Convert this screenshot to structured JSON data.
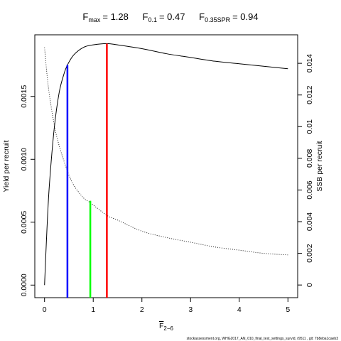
{
  "title": {
    "fmax_base": "F",
    "fmax_sub": "max",
    "fmax_value": "= 1.28",
    "f01_base": "F",
    "f01_sub": "0.1",
    "f01_value": "= 0.47",
    "fspr_base": "F",
    "fspr_sub": "0.35SPR",
    "fspr_value": "= 0.94"
  },
  "footer": "stockassessment.org,  WHG2017_AN_010_final_test_settings_survid, r9511 , git: 7b8eba1caeb3",
  "chart_data": {
    "type": "line",
    "xlabel_base": "F",
    "xlabel_sub": "2−6",
    "ylabel_left": "Yield per recruit",
    "ylabel_right": "SSB per recruit",
    "xlim": [
      -0.2,
      5.2
    ],
    "ylim_left": [
      -0.0001,
      0.00199
    ],
    "ylim_right": [
      -0.0008,
      0.0158
    ],
    "x_ticks": [
      0,
      1,
      2,
      3,
      4,
      5
    ],
    "x_tick_labels": [
      "0",
      "1",
      "2",
      "3",
      "4",
      "5"
    ],
    "y_left_ticks": [
      0.0,
      0.0005,
      0.001,
      0.0015
    ],
    "y_left_tick_labels": [
      "0.0000",
      "0.0005",
      "0.0010",
      "0.0015"
    ],
    "y_right_ticks": [
      0,
      0.002,
      0.004,
      0.006,
      0.008,
      0.01,
      0.012,
      0.014
    ],
    "y_right_tick_labels": [
      "0",
      "0.002",
      "0.004",
      "0.006",
      "0.008",
      "0.01",
      "0.012",
      "0.014"
    ],
    "series": [
      {
        "axis": "left",
        "style": "solid",
        "color": "#000000",
        "x": [
          0,
          0.05,
          0.1,
          0.2,
          0.3,
          0.4,
          0.47,
          0.6,
          0.8,
          1.0,
          1.28,
          1.5,
          2.0,
          2.5,
          3.0,
          3.5,
          4.0,
          4.5,
          5.0
        ],
        "y": [
          0.0,
          0.00045,
          0.0008,
          0.00125,
          0.00153,
          0.00168,
          0.00175,
          0.00183,
          0.00189,
          0.00191,
          0.00192,
          0.00191,
          0.00188,
          0.00184,
          0.00181,
          0.00178,
          0.00176,
          0.00174,
          0.00172
        ]
      },
      {
        "axis": "right",
        "style": "dotted",
        "color": "#000000",
        "x": [
          0,
          0.05,
          0.1,
          0.2,
          0.3,
          0.47,
          0.6,
          0.8,
          0.94,
          1.28,
          1.5,
          2.0,
          2.5,
          3.0,
          3.5,
          4.0,
          4.5,
          5.0
        ],
        "y": [
          0.015,
          0.0133,
          0.012,
          0.0101,
          0.0088,
          0.0072,
          0.0063,
          0.0055,
          0.0052,
          0.0044,
          0.0041,
          0.0034,
          0.003,
          0.0027,
          0.0024,
          0.0022,
          0.002,
          0.0019
        ]
      }
    ],
    "reference_lines": [
      {
        "name": "F0.1",
        "x": 0.47,
        "y_top": 0.00175,
        "color": "#0000ff"
      },
      {
        "name": "F0.35SPR",
        "x": 0.94,
        "y_top": 0.00067,
        "color": "#00ff00"
      },
      {
        "name": "Fmax",
        "x": 1.28,
        "y_top": 0.00192,
        "color": "#ff0000"
      }
    ],
    "grid": false
  }
}
